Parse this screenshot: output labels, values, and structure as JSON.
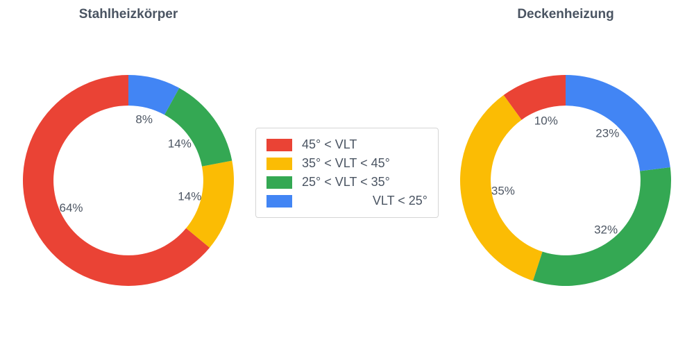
{
  "colors": {
    "red": "#EA4335",
    "yellow": "#FBBC04",
    "green": "#34A853",
    "blue": "#4285F4"
  },
  "legend": {
    "position": "center-between-charts",
    "items": [
      {
        "label": "45° < VLT",
        "color": "#EA4335",
        "align": "left"
      },
      {
        "label": "35° < VLT < 45°",
        "color": "#FBBC04",
        "align": "left"
      },
      {
        "label": "25° < VLT < 35°",
        "color": "#34A853",
        "align": "left"
      },
      {
        "label": "VLT < 25°",
        "color": "#4285F4",
        "align": "right"
      }
    ]
  },
  "chart_data": [
    {
      "type": "pie",
      "title": "Stahlheizkörper",
      "labels": [
        "45° < VLT",
        "35° < VLT < 45°",
        "25° < VLT < 35°",
        "VLT < 25°"
      ],
      "values": [
        64,
        14,
        14,
        8
      ],
      "pct_labels": [
        "64%",
        "14%",
        "14%",
        "8%"
      ],
      "colors": [
        "#EA4335",
        "#FBBC04",
        "#34A853",
        "#4285F4"
      ],
      "hole": 0.71,
      "label_radius": 0.6,
      "start_angle": 90,
      "direction": "counterclockwise"
    },
    {
      "type": "pie",
      "title": "Deckenheizung",
      "labels": [
        "45° < VLT",
        "35° < VLT < 45°",
        "25° < VLT < 35°",
        "VLT < 25°"
      ],
      "values": [
        10,
        35,
        32,
        23
      ],
      "pct_labels": [
        "10%",
        "35%",
        "32%",
        "23%"
      ],
      "colors": [
        "#EA4335",
        "#FBBC04",
        "#34A853",
        "#4285F4"
      ],
      "hole": 0.71,
      "label_radius": 0.6,
      "start_angle": 90,
      "direction": "counterclockwise"
    }
  ]
}
